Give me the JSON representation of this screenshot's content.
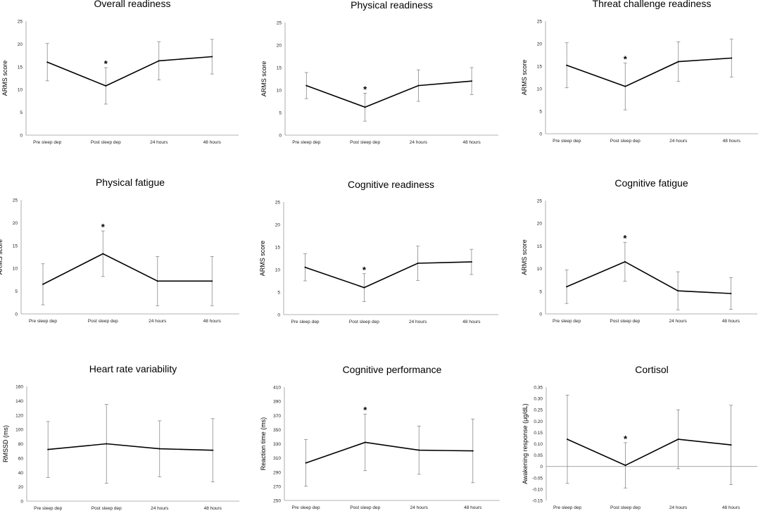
{
  "chart_data": [
    {
      "type": "line",
      "title": "Overall readiness",
      "ylabel": "ARMS score",
      "xlabel": "",
      "categories": [
        "Pre sleep dep",
        "Post sleep dep",
        "24 hours",
        "48 hours"
      ],
      "values": [
        16.0,
        10.8,
        16.3,
        17.2
      ],
      "errors": [
        4.1,
        4.0,
        4.2,
        3.8
      ],
      "significant": [
        false,
        true,
        false,
        false
      ],
      "significance_marker": "*",
      "ylim": [
        0,
        25
      ],
      "yticks": [
        0,
        5,
        10,
        15,
        20,
        25
      ]
    },
    {
      "type": "line",
      "title": "Physical readiness",
      "ylabel": "ARMS score",
      "xlabel": "",
      "categories": [
        "Pre sleep dep",
        "Post sleep dep",
        "24 hours",
        "48 hours"
      ],
      "values": [
        11.0,
        6.2,
        11.0,
        12.0
      ],
      "errors": [
        2.9,
        3.1,
        3.5,
        3.0
      ],
      "significant": [
        false,
        true,
        false,
        false
      ],
      "significance_marker": "*",
      "ylim": [
        0,
        25
      ],
      "yticks": [
        0,
        5,
        10,
        15,
        20,
        25
      ]
    },
    {
      "type": "line",
      "title": "Threat challenge readiness",
      "ylabel": "ARMS score",
      "xlabel": "",
      "categories": [
        "Pre sleep dep",
        "Post sleep dep",
        "24 hours",
        "48 hours"
      ],
      "values": [
        15.2,
        10.5,
        16.0,
        16.8
      ],
      "errors": [
        5.0,
        5.2,
        4.4,
        4.2
      ],
      "significant": [
        false,
        true,
        false,
        false
      ],
      "significance_marker": "*",
      "ylim": [
        0,
        25
      ],
      "yticks": [
        0,
        5,
        10,
        15,
        20,
        25
      ]
    },
    {
      "type": "line",
      "title": "Physical fatigue",
      "ylabel": "ARMS score",
      "xlabel": "",
      "categories": [
        "Pre sleep dep",
        "Post sleep dep",
        "24 hours",
        "48 hours"
      ],
      "values": [
        6.5,
        13.2,
        7.2,
        7.2
      ],
      "errors": [
        4.5,
        5.0,
        5.4,
        5.4
      ],
      "significant": [
        false,
        true,
        false,
        false
      ],
      "significance_marker": "*",
      "ylim": [
        0,
        25
      ],
      "yticks": [
        0,
        5,
        10,
        15,
        20,
        25
      ]
    },
    {
      "type": "line",
      "title": "Cognitive readiness",
      "ylabel": "ARMS score",
      "xlabel": "",
      "categories": [
        "Pre sleep dep",
        "Post sleep dep",
        "24 hours",
        "48 hours"
      ],
      "values": [
        10.5,
        6.0,
        11.4,
        11.7
      ],
      "errors": [
        3.0,
        3.1,
        3.8,
        2.8
      ],
      "significant": [
        false,
        true,
        false,
        false
      ],
      "significance_marker": "*",
      "ylim": [
        0,
        25
      ],
      "yticks": [
        0,
        5,
        10,
        15,
        20,
        25
      ]
    },
    {
      "type": "line",
      "title": "Cognitive fatigue",
      "ylabel": "ARMS score",
      "xlabel": "",
      "categories": [
        "Pre sleep dep",
        "Post sleep dep",
        "24 hours",
        "48 hours"
      ],
      "values": [
        6.0,
        11.5,
        5.1,
        4.5
      ],
      "errors": [
        3.7,
        4.3,
        4.2,
        3.5
      ],
      "significant": [
        false,
        true,
        false,
        false
      ],
      "significance_marker": "*",
      "ylim": [
        0,
        25
      ],
      "yticks": [
        0,
        5,
        10,
        15,
        20,
        25
      ]
    },
    {
      "type": "line",
      "title": "Heart rate variability",
      "ylabel": "RMSSD (ms)",
      "xlabel": "",
      "categories": [
        "Pre sleep dep",
        "Post sleep dep",
        "24 hours",
        "48 hours"
      ],
      "values": [
        72,
        80,
        73,
        71
      ],
      "errors": [
        39,
        55,
        39,
        44
      ],
      "significant": [
        false,
        false,
        false,
        false
      ],
      "significance_marker": "*",
      "ylim": [
        0,
        160
      ],
      "yticks": [
        0,
        20,
        40,
        60,
        80,
        100,
        120,
        140,
        160
      ]
    },
    {
      "type": "line",
      "title": "Cognitive performance",
      "ylabel": "Reaction time (ms)",
      "xlabel": "",
      "categories": [
        "Pre sleep dep",
        "Post sleep dep",
        "24 hours",
        "48 hours"
      ],
      "values": [
        303,
        332,
        321,
        320
      ],
      "errors": [
        33,
        40,
        34,
        45
      ],
      "significant": [
        false,
        true,
        false,
        false
      ],
      "significance_marker": "*",
      "ylim": [
        250,
        410
      ],
      "yticks": [
        250,
        270,
        290,
        310,
        330,
        350,
        370,
        390,
        410
      ]
    },
    {
      "type": "line",
      "title": "Cortisol",
      "ylabel": "Awakening response (μg/dL)",
      "xlabel": "",
      "categories": [
        "Pre sleep dep",
        "Post sleep dep",
        "24 hours",
        "48 hours"
      ],
      "values": [
        0.12,
        0.005,
        0.12,
        0.095
      ],
      "errors": [
        0.195,
        0.1,
        0.13,
        0.175
      ],
      "significant": [
        false,
        true,
        false,
        false
      ],
      "significance_marker": "*",
      "ylim": [
        -0.15,
        0.35
      ],
      "yticks": [
        -0.15,
        -0.1,
        -0.05,
        0,
        0.05,
        0.1,
        0.15,
        0.2,
        0.25,
        0.3,
        0.35
      ],
      "ytick_labels": [
        "-0.15",
        "-0.10",
        "-0.05",
        "0",
        "0.05",
        "0.10",
        "0.15",
        "0.20",
        "0.25",
        "0.30",
        "0.35"
      ],
      "zero_line": true
    }
  ]
}
